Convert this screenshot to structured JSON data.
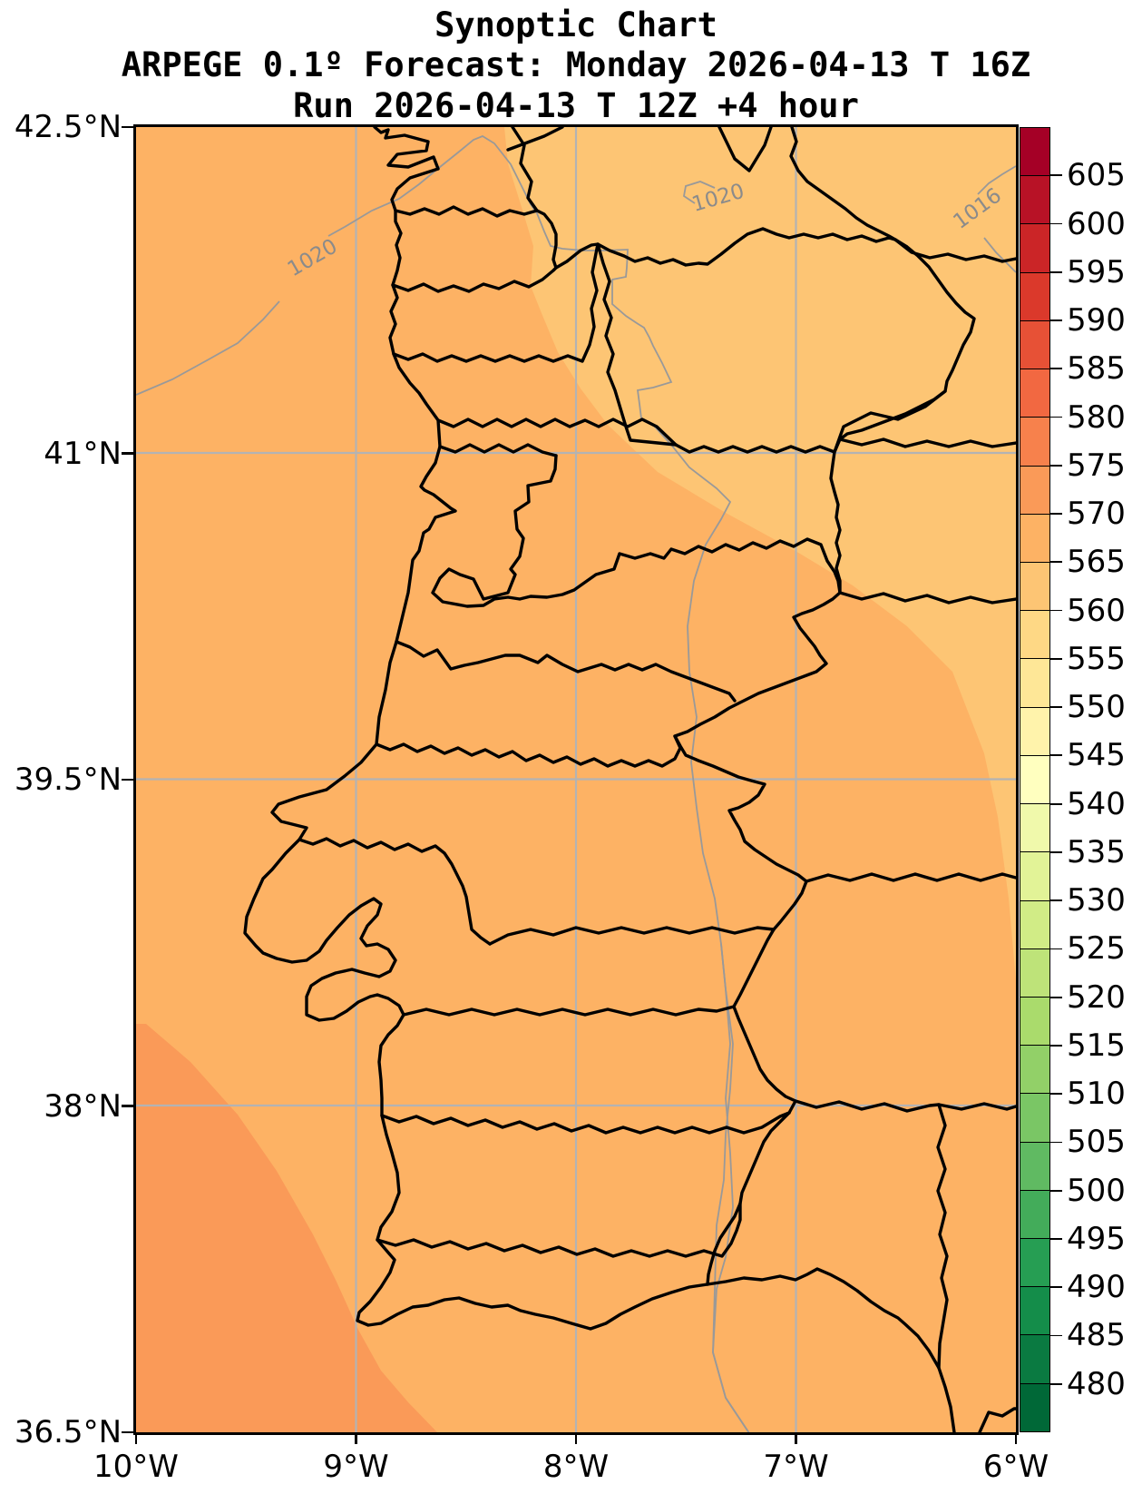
{
  "title": {
    "line1": "Synoptic Chart",
    "line2": "ARPEGE 0.1º Forecast: Monday 2026-04-13 T 16Z",
    "line3": "Run 2026-04-13 T 12Z +4 hour"
  },
  "axes": {
    "x_ticks": [
      {
        "label": "10°W",
        "lon": -10
      },
      {
        "label": "9°W",
        "lon": -9
      },
      {
        "label": "8°W",
        "lon": -8
      },
      {
        "label": "7°W",
        "lon": -7
      },
      {
        "label": "6°W",
        "lon": -6
      }
    ],
    "y_ticks": [
      {
        "label": "42.5°N",
        "lat": 42.5
      },
      {
        "label": "41°N",
        "lat": 41
      },
      {
        "label": "39.5°N",
        "lat": 39.5
      },
      {
        "label": "38°N",
        "lat": 38
      },
      {
        "label": "36.5°N",
        "lat": 36.5
      }
    ]
  },
  "colorbar": {
    "vmin": 475,
    "vmax": 610,
    "tick_values": [
      605,
      600,
      595,
      590,
      585,
      580,
      575,
      570,
      565,
      560,
      555,
      550,
      545,
      540,
      535,
      530,
      525,
      520,
      515,
      510,
      505,
      500,
      495,
      490,
      485,
      480
    ],
    "segment_colors_bottom_to_top": [
      "#006837",
      "#0a7a41",
      "#148d4a",
      "#269e53",
      "#43ac5a",
      "#60ba62",
      "#7ac665",
      "#92d068",
      "#aadb6c",
      "#bee379",
      "#d1ec86",
      "#e2f397",
      "#f0f9ab",
      "#ffffbf",
      "#fff3ab",
      "#fee797",
      "#fed885",
      "#fdc574",
      "#fdb264",
      "#fa9a58",
      "#f7814c",
      "#f26841",
      "#e75136",
      "#db392b",
      "#cb2527",
      "#b81226",
      "#a50026"
    ]
  },
  "chart_data": {
    "type": "heatmap",
    "title": "Synoptic Chart",
    "model": "ARPEGE 0.1º",
    "forecast_valid": "Monday 2026-04-13 T 16Z",
    "run": "2026-04-13 T 12Z +4 hour",
    "extent": {
      "lon_min": -10,
      "lon_max": -6,
      "lat_min": 36.5,
      "lat_max": 42.5
    },
    "grid": "on",
    "legend_position": "right-colorbar",
    "colorbar_range": [
      475,
      610
    ],
    "colorbar_ticks": [
      480,
      485,
      490,
      495,
      500,
      505,
      510,
      515,
      520,
      525,
      530,
      535,
      540,
      545,
      550,
      555,
      560,
      565,
      570,
      575,
      580,
      585,
      590,
      595,
      600,
      605
    ],
    "bands_visible": [
      {
        "range": "560-565",
        "color": "#fdc574",
        "region": "northeast"
      },
      {
        "range": "565-570",
        "color": "#fdb264",
        "region": "main-body"
      },
      {
        "range": "570-575",
        "color": "#fa9a58",
        "region": "southwest-ocean"
      }
    ],
    "isobars": [
      {
        "label": "1020",
        "position": "west"
      },
      {
        "label": "1020",
        "position": "north-center-closed-low"
      },
      {
        "label": "1016",
        "position": "northeast-corner"
      }
    ]
  }
}
